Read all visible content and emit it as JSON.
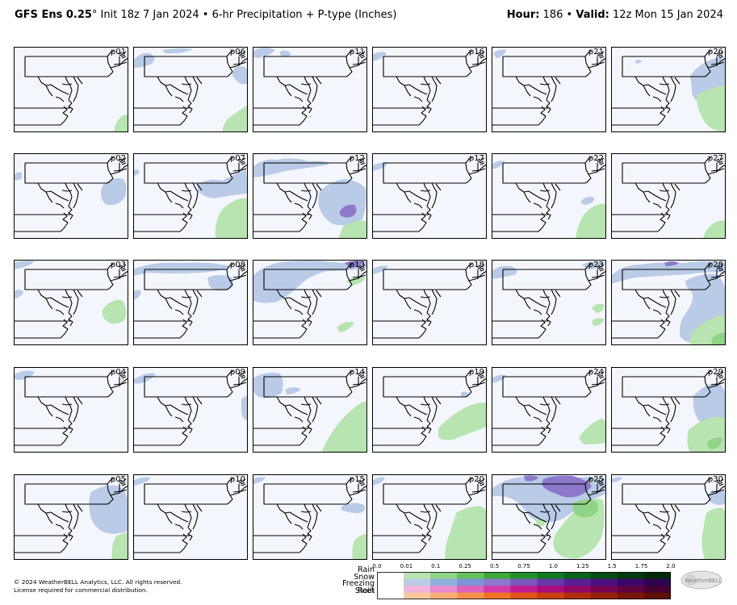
{
  "header": {
    "model": "GFS Ens 0.25",
    "degree": "°",
    "init": " Init 18z 7 Jan 2024",
    "bullet": " • ",
    "product": "6-hr Precipitation + P-type (Inches)",
    "hour_label": "Hour:",
    "hour_value": " 186",
    "valid_label": "Valid:",
    "valid_value": " 12z Mon 15 Jan 2024"
  },
  "panels": [
    "p01",
    "p06",
    "p11",
    "p16",
    "p21",
    "p26",
    "p02",
    "p07",
    "p12",
    "p17",
    "p22",
    "p27",
    "p03",
    "p08",
    "p13",
    "p18",
    "p23",
    "p28",
    "p04",
    "p09",
    "p14",
    "p19",
    "p24",
    "p29",
    "p05",
    "p10",
    "p15",
    "p20",
    "p25",
    "p30"
  ],
  "legend": {
    "ticks": [
      "0.0",
      "0.01",
      "0.1",
      "0.25",
      "0.5",
      "0.75",
      "1.0",
      "1.25",
      "1.5",
      "1.75",
      "2.0"
    ],
    "rows": [
      {
        "label": "Rain",
        "colors": [
          "#ffffff",
          "#b7e4b0",
          "#8fd487",
          "#65c15e",
          "#3ea83a",
          "#21902a",
          "#127a24",
          "#0a641c",
          "#054d14",
          "#033a0e",
          "#022a08"
        ]
      },
      {
        "label": "Snow",
        "colors": [
          "#ffffff",
          "#b9cbe6",
          "#8fb0dc",
          "#7d94d6",
          "#8d78cc",
          "#7b57bd",
          "#6838a8",
          "#5a1f95",
          "#4b1280",
          "#3b086a",
          "#2c0452"
        ]
      },
      {
        "label": "Freezing Rain",
        "colors": [
          "#ffffff",
          "#f0b6dc",
          "#e78ccc",
          "#dd63bb",
          "#d23ba8",
          "#c21c92",
          "#a80f7b",
          "#8f0866",
          "#760452",
          "#5e0240",
          "#460130"
        ]
      },
      {
        "label": "Sleet",
        "colors": [
          "#ffffff",
          "#f9c8a0",
          "#f7ad74",
          "#f5914c",
          "#ef7328",
          "#e0541a",
          "#c93e13",
          "#b02d0e",
          "#94200a",
          "#781607",
          "#5d0f04"
        ]
      }
    ]
  },
  "footer": {
    "copyright": "© 2024 WeatherBELL Analytics, LLC. All rights reserved.",
    "license": "License required for commercial distribution."
  },
  "logo_text": "WeatherBELL",
  "colors": {
    "map_bg": "#f4f6fd",
    "snow_light": "#b9cbe6",
    "snow_mid": "#8fb0dc",
    "snow_dark": "#8d78cc",
    "rain_light": "#b7e4b0",
    "rain_mid": "#8fd487"
  }
}
